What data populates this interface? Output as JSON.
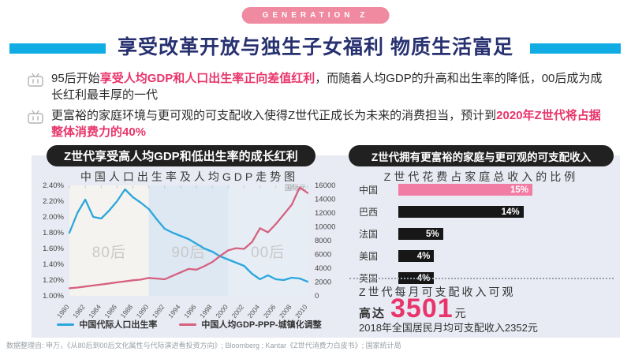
{
  "badge": {
    "label": "GENERATION Z"
  },
  "title": "享受改革开放与独生子女福利 物质生活富足",
  "bullets": [
    {
      "icon": "tv-icon",
      "segments": [
        {
          "text": "95后开始",
          "highlight": false
        },
        {
          "text": "享受人均GDP和人口出生率正向差值红利",
          "highlight": true
        },
        {
          "text": "，而随着人均GDP的升高和出生率的降低，00后成为成长红利最丰厚的一代",
          "highlight": false
        }
      ]
    },
    {
      "icon": "tv-icon",
      "segments": [
        {
          "text": "更富裕的家庭环境与更可观的可支配收入使得Z世代正成长为未来的消费担当，预计到",
          "highlight": false
        },
        {
          "text": "2020年Z世代将占据整体消费力的40%",
          "highlight": true
        }
      ]
    }
  ],
  "left_panel": {
    "pill": "Z世代享受高人均GDP和低出生率的成长红利",
    "chart_title": "中国人口出生率及人均GDP走势图"
  },
  "right_panel": {
    "pill": "Z世代拥有更富裕的家庭与更可观的可支配收入",
    "chart_title": "Z世代花费占家庭总收入的比例",
    "income_note": {
      "line1": "Z世代每月可支配收入可观",
      "prefix": "高达",
      "amount": "3501",
      "unit": "元",
      "line3": "2018年全国居民月均可支配收入2352元"
    }
  },
  "chart_data": [
    {
      "type": "line",
      "title": "中国人口出生率及人均GDP走势图",
      "x": [
        1980,
        1981,
        1982,
        1983,
        1984,
        1985,
        1986,
        1987,
        1988,
        1989,
        1990,
        1991,
        1992,
        1993,
        1994,
        1995,
        1996,
        1997,
        1998,
        1999,
        2000,
        2001,
        2002,
        2003,
        2004,
        2005,
        2006,
        2007,
        2008,
        2009,
        2010
      ],
      "x_tick_labels": [
        1980,
        1982,
        1984,
        1986,
        1988,
        1990,
        1992,
        1994,
        1996,
        1998,
        2000,
        2002,
        2004,
        2006,
        2008,
        2010
      ],
      "left_axis": {
        "min": 1.0,
        "max": 2.4,
        "step": 0.2,
        "format": "percent"
      },
      "right_axis": {
        "min": 0,
        "max": 16000,
        "step": 2000,
        "label": "国际元"
      },
      "bands": [
        {
          "label": "80后",
          "from": 1980,
          "to": 1990,
          "color": "#f4f3ef"
        },
        {
          "label": "90后",
          "from": 1990,
          "to": 2000,
          "color": "#dde8f3"
        },
        {
          "label": "00后",
          "from": 2000,
          "to": 2010,
          "color": "#e6edf5"
        }
      ],
      "series": [
        {
          "name": "中国代际人口出生率",
          "axis": "left",
          "color": "#2ba7dd",
          "values": [
            1.8,
            2.05,
            2.22,
            2.0,
            1.98,
            2.08,
            2.2,
            2.35,
            2.25,
            2.18,
            2.1,
            1.97,
            1.85,
            1.8,
            1.76,
            1.72,
            1.66,
            1.6,
            1.56,
            1.5,
            1.46,
            1.42,
            1.38,
            1.28,
            1.21,
            1.26,
            1.21,
            1.2,
            1.23,
            1.22,
            1.18
          ]
        },
        {
          "name": "中国人均GDP-PPP-城镇化调整",
          "axis": "right",
          "color": "#d6607e",
          "values": [
            1100,
            1200,
            1350,
            1500,
            1650,
            1800,
            1950,
            2100,
            2250,
            2350,
            2600,
            2500,
            2400,
            2900,
            3400,
            3900,
            3800,
            4300,
            4900,
            5800,
            6600,
            6900,
            6800,
            7800,
            9800,
            9200,
            10400,
            11800,
            13200,
            15700,
            14900
          ]
        }
      ],
      "legend_position": "bottom"
    },
    {
      "type": "bar",
      "title": "Z世代花费占家庭总收入的比例",
      "categories": [
        "中国",
        "巴西",
        "法国",
        "美国",
        "英国"
      ],
      "values": [
        15,
        14,
        5,
        4,
        4
      ],
      "unit": "%",
      "bar_colors": [
        "#f17ca4",
        "#171717",
        "#171717",
        "#171717",
        "#171717"
      ],
      "xlim": [
        0,
        15
      ]
    }
  ],
  "source": "数据整理自: 申万，《从80后到00后文化属性与代际演进看投资方向》; Bloomberg ; Kantar《Z世代消费力白皮书》; 国家统计局",
  "colors": {
    "accent_pink": "#e8356b",
    "badge_pink": "#ef8aa1",
    "cyan_bar": "#12ace5",
    "title_navy": "#273170",
    "panel_bg": "#e9ebf4",
    "pill_bg": "#212121",
    "band_label_gray": "#c9c9c9"
  }
}
